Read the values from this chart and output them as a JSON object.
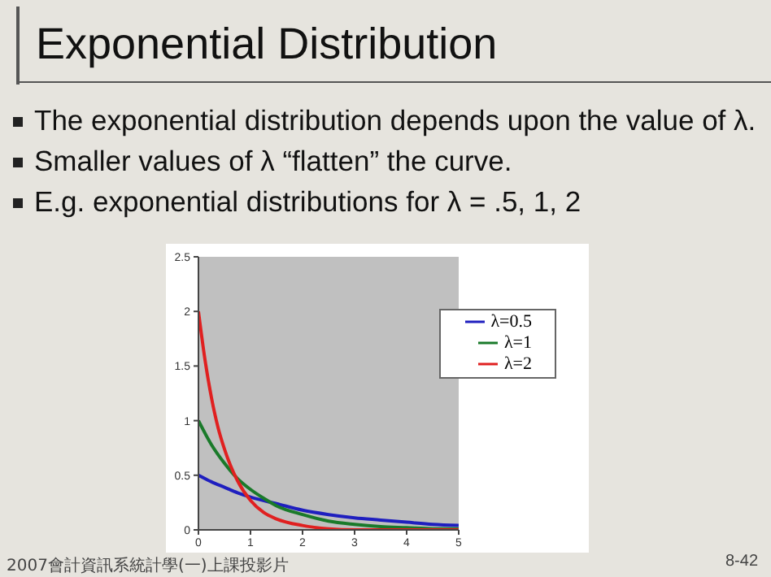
{
  "chart_data": {
    "type": "line",
    "title": "Exponential Distribution",
    "annotations": [
      "The exponential distribution depends upon the value of λ.",
      "Smaller values of λ “flatten” the curve.",
      "E.g. exponential distributions for λ = .5, 1, 2",
      "2007會計資訊系統計學(一)上課投影片",
      "8-42"
    ],
    "series": [
      {
        "name": "λ=0.5",
        "color": "#1f1fbf",
        "x": [
          0,
          0.25,
          0.5,
          0.75,
          1,
          1.5,
          2,
          2.5,
          3,
          3.5,
          4,
          4.5,
          5
        ],
        "values": [
          0.5,
          0.44,
          0.39,
          0.34,
          0.3,
          0.24,
          0.18,
          0.14,
          0.11,
          0.09,
          0.07,
          0.05,
          0.04
        ]
      },
      {
        "name": "λ=1",
        "color": "#1a7a2a",
        "x": [
          0,
          0.25,
          0.5,
          0.75,
          1,
          1.25,
          1.5,
          2,
          2.5,
          3,
          3.5,
          4,
          4.5,
          5
        ],
        "values": [
          1,
          0.78,
          0.61,
          0.47,
          0.37,
          0.29,
          0.22,
          0.14,
          0.08,
          0.05,
          0.03,
          0.02,
          0.01,
          0.01
        ]
      },
      {
        "name": "λ=2",
        "color": "#e02020",
        "x": [
          0,
          0.125,
          0.25,
          0.375,
          0.5,
          0.75,
          1,
          1.25,
          1.5,
          2,
          2.5,
          3,
          4,
          5
        ],
        "values": [
          2,
          1.56,
          1.21,
          0.94,
          0.74,
          0.45,
          0.27,
          0.16,
          0.1,
          0.04,
          0.01,
          0,
          0,
          0
        ]
      }
    ],
    "xlim": [
      0,
      5
    ],
    "xticks": [
      0,
      1,
      2,
      3,
      4,
      5
    ],
    "ylim": [
      0,
      2.5
    ],
    "yticks": [
      0,
      0.5,
      1,
      1.5,
      2,
      2.5
    ],
    "legend": "right",
    "marker": "none",
    "line_style": "solid"
  }
}
